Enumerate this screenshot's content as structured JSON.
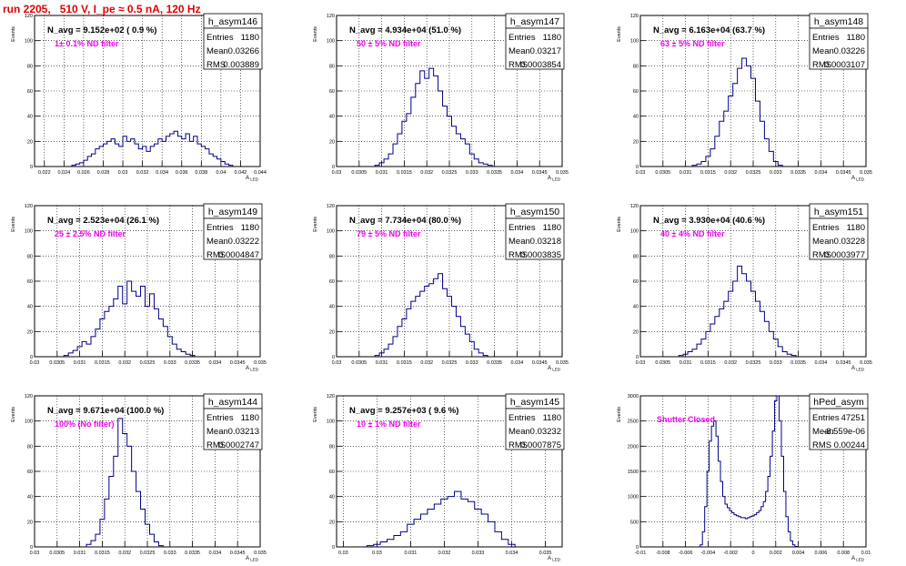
{
  "page": {
    "title": "run 2205,   510 V, I_pe ≈ 0.5 nA, 120 Hz"
  },
  "colors": {
    "histogram": "#000088",
    "label": "#ee00ee",
    "title": "#e00000"
  },
  "chart_data": [
    {
      "type": "histogram",
      "name": "h_asym146",
      "ylabel": "Events",
      "xlabel": "A_LED",
      "xlim": [
        0.021,
        0.044
      ],
      "ylim": [
        0,
        120
      ],
      "xticks": [
        0.022,
        0.024,
        0.026,
        0.028,
        0.03,
        0.032,
        0.034,
        0.036,
        0.038,
        0.04,
        0.042,
        0.044
      ],
      "xtick_labels": [
        "0.022",
        "0.024",
        "0.026",
        "0.028",
        "0.03",
        "0.032",
        "0.034",
        "0.036",
        "0.038",
        "0.04",
        "0.042",
        "0.044"
      ],
      "yticks": [
        0,
        20,
        40,
        60,
        80,
        100,
        120
      ],
      "stats": {
        "entries_label": "Entries",
        "entries": "1180",
        "mean_label": "Mean",
        "mean": "0.03266",
        "rms_label": "RMS",
        "rms": "0.003889"
      },
      "annotation": "N_avg = 9.152e+02 ( 0.9 %)",
      "filter": "1± 0.1% ND filter",
      "x": [
        0.025,
        0.0254,
        0.0258,
        0.0262,
        0.0266,
        0.027,
        0.0274,
        0.0278,
        0.0282,
        0.0286,
        0.029,
        0.0294,
        0.0298,
        0.0302,
        0.0306,
        0.031,
        0.0314,
        0.0318,
        0.0322,
        0.0326,
        0.033,
        0.0334,
        0.0338,
        0.0342,
        0.0346,
        0.035,
        0.0354,
        0.0358,
        0.0362,
        0.0366,
        0.037,
        0.0374,
        0.0378,
        0.0382,
        0.0386,
        0.039,
        0.0394,
        0.0398,
        0.0402,
        0.0406,
        0.041
      ],
      "y": [
        1,
        2,
        3,
        5,
        8,
        10,
        14,
        16,
        18,
        20,
        22,
        18,
        16,
        24,
        20,
        22,
        18,
        14,
        16,
        12,
        16,
        18,
        22,
        20,
        24,
        26,
        28,
        24,
        22,
        26,
        20,
        24,
        18,
        16,
        14,
        10,
        8,
        6,
        4,
        2,
        1
      ]
    },
    {
      "type": "histogram",
      "name": "h_asym147",
      "ylabel": "Events",
      "xlabel": "A_LED",
      "xlim": [
        0.03,
        0.035
      ],
      "ylim": [
        0,
        120
      ],
      "xticks": [
        0.03,
        0.0305,
        0.031,
        0.0315,
        0.032,
        0.0325,
        0.033,
        0.0335,
        0.034,
        0.0345,
        0.035
      ],
      "xtick_labels": [
        "0.03",
        "0.0305",
        "0.031",
        "0.0315",
        "0.032",
        "0.0325",
        "0.033",
        "0.0335",
        "0.034",
        "0.0345",
        "0.035"
      ],
      "yticks": [
        0,
        20,
        40,
        60,
        80,
        100,
        120
      ],
      "stats": {
        "entries_label": "Entries",
        "entries": "1180",
        "mean_label": "Mean",
        "mean": "0.03217",
        "rms_label": "RMS",
        "rms": "0.0003854"
      },
      "annotation": "N_avg = 4.934e+04 (51.0 %)",
      "filter": "50 ± 5% ND filter",
      "x": [
        0.0309,
        0.031,
        0.0311,
        0.0312,
        0.0313,
        0.0314,
        0.0315,
        0.0316,
        0.0317,
        0.0318,
        0.0319,
        0.032,
        0.0321,
        0.0322,
        0.0323,
        0.0324,
        0.0325,
        0.0326,
        0.0327,
        0.0328,
        0.0329,
        0.033,
        0.0331,
        0.0332,
        0.0333,
        0.0334
      ],
      "y": [
        1,
        3,
        6,
        10,
        18,
        26,
        36,
        42,
        55,
        66,
        76,
        70,
        78,
        72,
        60,
        48,
        40,
        32,
        26,
        22,
        18,
        10,
        6,
        3,
        2,
        1
      ]
    },
    {
      "type": "histogram",
      "name": "h_asym148",
      "ylabel": "Events",
      "xlabel": "A_LED",
      "xlim": [
        0.03,
        0.035
      ],
      "ylim": [
        0,
        120
      ],
      "xticks": [
        0.03,
        0.0305,
        0.031,
        0.0315,
        0.032,
        0.0325,
        0.033,
        0.0335,
        0.034,
        0.0345,
        0.035
      ],
      "xtick_labels": [
        "0.03",
        "0.0305",
        "0.031",
        "0.0315",
        "0.032",
        "0.0325",
        "0.033",
        "0.0335",
        "0.034",
        "0.0345",
        "0.035"
      ],
      "yticks": [
        0,
        20,
        40,
        60,
        80,
        100,
        120
      ],
      "stats": {
        "entries_label": "Entries",
        "entries": "1180",
        "mean_label": "Mean",
        "mean": "0.03226",
        "rms_label": "RMS",
        "rms": "0.0003107"
      },
      "annotation": "N_avg = 6.163e+04 (63.7 %)",
      "filter": "63 ± 5% ND filter",
      "x": [
        0.0312,
        0.0313,
        0.0314,
        0.0315,
        0.0316,
        0.0317,
        0.0318,
        0.0319,
        0.032,
        0.0321,
        0.0322,
        0.0323,
        0.0324,
        0.0325,
        0.0326,
        0.0327,
        0.0328,
        0.0329,
        0.033,
        0.0331
      ],
      "y": [
        1,
        2,
        4,
        8,
        14,
        24,
        36,
        44,
        56,
        66,
        78,
        86,
        80,
        70,
        52,
        36,
        22,
        12,
        4,
        1
      ]
    },
    {
      "type": "histogram",
      "name": "h_asym149",
      "ylabel": "Events",
      "xlabel": "A_LED",
      "xlim": [
        0.03,
        0.035
      ],
      "ylim": [
        0,
        120
      ],
      "xticks": [
        0.03,
        0.0305,
        0.031,
        0.0315,
        0.032,
        0.0325,
        0.033,
        0.0335,
        0.034,
        0.0345,
        0.035
      ],
      "xtick_labels": [
        "0.03",
        "0.0305",
        "0.031",
        "0.0315",
        "0.032",
        "0.0325",
        "0.033",
        "0.0335",
        "0.034",
        "0.0345",
        "0.035"
      ],
      "yticks": [
        0,
        20,
        40,
        60,
        80,
        100,
        120
      ],
      "stats": {
        "entries_label": "Entries",
        "entries": "1180",
        "mean_label": "Mean",
        "mean": "0.03222",
        "rms_label": "RMS",
        "rms": "0.0004847"
      },
      "annotation": "N_avg = 2.523e+04 (26.1 %)",
      "filter": "25 ± 2.5% ND filter",
      "x": [
        0.0307,
        0.0308,
        0.0309,
        0.031,
        0.0311,
        0.0312,
        0.0313,
        0.0314,
        0.0315,
        0.0316,
        0.0317,
        0.0318,
        0.0319,
        0.032,
        0.0321,
        0.0322,
        0.0323,
        0.0324,
        0.0325,
        0.0326,
        0.0327,
        0.0328,
        0.0329,
        0.033,
        0.0331,
        0.0332,
        0.0333,
        0.0334,
        0.0335
      ],
      "y": [
        1,
        3,
        5,
        8,
        12,
        10,
        16,
        22,
        30,
        36,
        40,
        46,
        56,
        42,
        60,
        52,
        48,
        56,
        40,
        50,
        38,
        30,
        24,
        16,
        10,
        6,
        4,
        2,
        1
      ]
    },
    {
      "type": "histogram",
      "name": "h_asym150",
      "ylabel": "Events",
      "xlabel": "A_LED",
      "xlim": [
        0.03,
        0.035
      ],
      "ylim": [
        0,
        120
      ],
      "xticks": [
        0.03,
        0.0305,
        0.031,
        0.0315,
        0.032,
        0.0325,
        0.033,
        0.0335,
        0.034,
        0.0345,
        0.035
      ],
      "xtick_labels": [
        "0.03",
        "0.0305",
        "0.031",
        "0.0315",
        "0.032",
        "0.0325",
        "0.033",
        "0.0335",
        "0.034",
        "0.0345",
        "0.035"
      ],
      "yticks": [
        0,
        20,
        40,
        60,
        80,
        100,
        120
      ],
      "stats": {
        "entries_label": "Entries",
        "entries": "1180",
        "mean_label": "Mean",
        "mean": "0.03218",
        "rms_label": "RMS",
        "rms": "0.0003835"
      },
      "annotation": "N_avg = 7.734e+04 (80.0 %)",
      "filter": "79 ± 5% ND filter",
      "x": [
        0.0309,
        0.031,
        0.0311,
        0.0312,
        0.0313,
        0.0314,
        0.0315,
        0.0316,
        0.0317,
        0.0318,
        0.0319,
        0.032,
        0.0321,
        0.0322,
        0.0323,
        0.0324,
        0.0325,
        0.0326,
        0.0327,
        0.0328,
        0.0329,
        0.033,
        0.0331,
        0.0332,
        0.0333
      ],
      "y": [
        1,
        3,
        6,
        10,
        16,
        24,
        30,
        38,
        44,
        48,
        52,
        56,
        58,
        62,
        66,
        54,
        48,
        40,
        32,
        24,
        18,
        12,
        6,
        3,
        1
      ]
    },
    {
      "type": "histogram",
      "name": "h_asym151",
      "ylabel": "Events",
      "xlabel": "A_LED",
      "xlim": [
        0.03,
        0.035
      ],
      "ylim": [
        0,
        120
      ],
      "xticks": [
        0.03,
        0.0305,
        0.031,
        0.0315,
        0.032,
        0.0325,
        0.033,
        0.0335,
        0.034,
        0.0345,
        0.035
      ],
      "xtick_labels": [
        "0.03",
        "0.0305",
        "0.031",
        "0.0315",
        "0.032",
        "0.0325",
        "0.033",
        "0.0335",
        "0.034",
        "0.0345",
        "0.035"
      ],
      "yticks": [
        0,
        20,
        40,
        60,
        80,
        100,
        120
      ],
      "stats": {
        "entries_label": "Entries",
        "entries": "1180",
        "mean_label": "Mean",
        "mean": "0.03228",
        "rms_label": "RMS",
        "rms": "0.0003977"
      },
      "annotation": "N_avg = 3.930e+04 (40.6 %)",
      "filter": "40 ± 4% ND filter",
      "x": [
        0.0309,
        0.031,
        0.0311,
        0.0312,
        0.0313,
        0.0314,
        0.0315,
        0.0316,
        0.0317,
        0.0318,
        0.0319,
        0.032,
        0.0321,
        0.0322,
        0.0323,
        0.0324,
        0.0325,
        0.0326,
        0.0327,
        0.0328,
        0.0329,
        0.033,
        0.0331,
        0.0332,
        0.0333,
        0.0334
      ],
      "y": [
        1,
        2,
        4,
        6,
        10,
        14,
        20,
        26,
        32,
        38,
        44,
        52,
        60,
        72,
        66,
        60,
        52,
        44,
        36,
        28,
        20,
        14,
        8,
        4,
        2,
        1
      ]
    },
    {
      "type": "histogram",
      "name": "h_asym144",
      "ylabel": "Events",
      "xlabel": "A_LED",
      "xlim": [
        0.03,
        0.035
      ],
      "ylim": [
        0,
        120
      ],
      "xticks": [
        0.03,
        0.0305,
        0.031,
        0.0315,
        0.032,
        0.0325,
        0.033,
        0.0335,
        0.034,
        0.0345,
        0.035
      ],
      "xtick_labels": [
        "0.03",
        "0.0305",
        "0.031",
        "0.0315",
        "0.032",
        "0.0325",
        "0.033",
        "0.0335",
        "0.034",
        "0.0345",
        "0.035"
      ],
      "yticks": [
        0,
        20,
        40,
        60,
        80,
        100,
        120
      ],
      "stats": {
        "entries_label": "Entries",
        "entries": "1180",
        "mean_label": "Mean",
        "mean": "0.03213",
        "rms_label": "RMS",
        "rms": "0.0002747"
      },
      "annotation": "N_avg = 9.671e+04 (100.0 %)",
      "filter": "100% (No filter)",
      "x": [
        0.0312,
        0.0313,
        0.0314,
        0.0315,
        0.0316,
        0.0317,
        0.0318,
        0.0319,
        0.032,
        0.0321,
        0.0322,
        0.0323,
        0.0324,
        0.0325,
        0.0326,
        0.0327,
        0.0328
      ],
      "y": [
        2,
        5,
        10,
        22,
        38,
        56,
        72,
        102,
        90,
        80,
        60,
        44,
        30,
        18,
        10,
        4,
        1
      ]
    },
    {
      "type": "histogram",
      "name": "h_asym145",
      "ylabel": "Events",
      "xlabel": "A_LED",
      "xlim": [
        0.0288,
        0.0355
      ],
      "ylim": [
        0,
        120
      ],
      "xticks": [
        0.029,
        0.03,
        0.031,
        0.032,
        0.033,
        0.034,
        0.035
      ],
      "xtick_labels": [
        "0.03",
        "0.03",
        "0.031",
        "0.032",
        "0.033",
        "0.034",
        "0.035"
      ],
      "yticks": [
        0,
        20,
        40,
        60,
        80,
        100,
        120
      ],
      "stats": {
        "entries_label": "Entries",
        "entries": "1180",
        "mean_label": "Mean",
        "mean": "0.03232",
        "rms_label": "RMS",
        "rms": "0.0007875"
      },
      "annotation": "N_avg = 9.257e+03 ( 9.6 %)",
      "filter": "10 ± 1% ND filter",
      "x": [
        0.0298,
        0.03,
        0.0302,
        0.0304,
        0.0306,
        0.0308,
        0.031,
        0.0312,
        0.0314,
        0.0316,
        0.0318,
        0.032,
        0.0322,
        0.0324,
        0.0326,
        0.0328,
        0.033,
        0.0332,
        0.0334,
        0.0336,
        0.0338,
        0.034
      ],
      "y": [
        1,
        2,
        4,
        6,
        9,
        12,
        18,
        22,
        26,
        30,
        34,
        38,
        40,
        44,
        38,
        36,
        30,
        26,
        20,
        12,
        6,
        2
      ]
    },
    {
      "type": "histogram",
      "name": "hPed_asym",
      "ylabel": "Events",
      "xlabel": "A_LED",
      "xlim": [
        -0.01,
        0.01
      ],
      "ylim": [
        0,
        3000
      ],
      "xticks": [
        -0.01,
        -0.008,
        -0.006,
        -0.004,
        -0.002,
        0,
        0.002,
        0.004,
        0.006,
        0.008,
        0.01
      ],
      "xtick_labels": [
        "-0.01",
        "-0.008",
        "-0.006",
        "-0.004",
        "-0.002",
        "0",
        "0.002",
        "0.004",
        "0.006",
        "0.008",
        "0.01"
      ],
      "yticks": [
        0,
        500,
        1000,
        1500,
        2000,
        2500,
        3000
      ],
      "stats": {
        "entries_label": "Entries",
        "entries": "47251",
        "mean_label": "Mean",
        "mean": "-8.559e-06",
        "rms_label": "RMS",
        "rms": "0.00244"
      },
      "annotation": "",
      "filter": "Shutter Closed",
      "x": [
        -0.0046,
        -0.0044,
        -0.0042,
        -0.004,
        -0.0038,
        -0.0036,
        -0.0034,
        -0.0032,
        -0.003,
        -0.0028,
        -0.0026,
        -0.0024,
        -0.0022,
        -0.002,
        -0.0018,
        -0.0016,
        -0.0014,
        -0.0012,
        -0.001,
        -0.0008,
        -0.0006,
        -0.0004,
        -0.0002,
        0,
        0.0002,
        0.0004,
        0.0006,
        0.0008,
        0.001,
        0.0012,
        0.0014,
        0.0016,
        0.0018,
        0.002,
        0.0022,
        0.0024,
        0.0026,
        0.0028,
        0.003,
        0.0032,
        0.0034,
        0.0036,
        0.0038
      ],
      "y": [
        40,
        300,
        800,
        1500,
        2100,
        2400,
        2500,
        2200,
        1700,
        1300,
        1000,
        850,
        780,
        720,
        680,
        640,
        620,
        600,
        580,
        580,
        560,
        580,
        600,
        620,
        640,
        680,
        720,
        800,
        900,
        1100,
        1400,
        1800,
        2300,
        2900,
        3000,
        2500,
        1800,
        1100,
        600,
        300,
        120,
        40,
        10
      ]
    }
  ]
}
